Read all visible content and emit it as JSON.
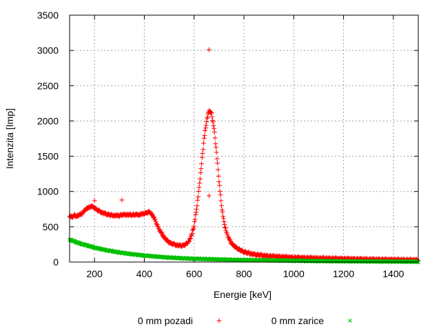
{
  "chart_data": {
    "type": "scatter",
    "title": "",
    "xlabel": "Energie [keV]",
    "ylabel": "Intenzita [Imp]",
    "xlim": [
      100,
      1500
    ],
    "ylim": [
      0,
      3500
    ],
    "xticks": [
      200,
      400,
      600,
      800,
      1000,
      1200,
      1400
    ],
    "yticks": [
      0,
      500,
      1000,
      1500,
      2000,
      2500,
      3000,
      3500
    ],
    "grid": true,
    "legend_position": "bottom",
    "x_start": 100,
    "x_step": 10,
    "series": [
      {
        "name": "0 mm pozadi",
        "color": "#ff0000",
        "marker": "plus",
        "values": [
          650,
          640,
          660,
          650,
          670,
          690,
          730,
          760,
          780,
          790,
          770,
          740,
          720,
          700,
          690,
          680,
          670,
          660,
          660,
          660,
          660,
          670,
          670,
          670,
          670,
          670,
          670,
          670,
          670,
          680,
          690,
          700,
          710,
          680,
          620,
          540,
          460,
          400,
          350,
          310,
          280,
          260,
          250,
          240,
          235,
          235,
          240,
          260,
          300,
          380,
          520,
          750,
          1050,
          1400,
          1750,
          2000,
          2150,
          2100,
          1900,
          1550,
          1150,
          800,
          560,
          420,
          330,
          270,
          230,
          200,
          180,
          160,
          145,
          135,
          125,
          115,
          110,
          105,
          100,
          95,
          90,
          88,
          85,
          82,
          80,
          78,
          76,
          74,
          72,
          70,
          68,
          66,
          64,
          63,
          62,
          61,
          60,
          59,
          58,
          57,
          56,
          55,
          54,
          53,
          52,
          51,
          50,
          50,
          49,
          48,
          47,
          46,
          46,
          45,
          44,
          43,
          43,
          42,
          41,
          40,
          40,
          39,
          38,
          38,
          37,
          36,
          36,
          35,
          35,
          34,
          34,
          33,
          33,
          32,
          32,
          31,
          31,
          30,
          30,
          29,
          29,
          28,
          28
        ],
        "outliers": [
          {
            "x": 660,
            "y": 3010
          },
          {
            "x": 660,
            "y": 940
          },
          {
            "x": 310,
            "y": 880
          },
          {
            "x": 200,
            "y": 870
          }
        ]
      },
      {
        "name": "0 mm zarice",
        "color": "#00c000",
        "marker": "cross",
        "values": [
          320,
          305,
          290,
          278,
          266,
          255,
          245,
          235,
          225,
          215,
          205,
          197,
          189,
          181,
          174,
          167,
          160,
          154,
          148,
          142,
          136,
          131,
          126,
          121,
          116,
          112,
          108,
          104,
          100,
          96,
          92,
          89,
          86,
          83,
          80,
          77,
          74,
          71,
          68,
          66,
          64,
          62,
          60,
          58,
          56,
          54,
          52,
          50,
          49,
          48,
          47,
          46,
          45,
          44,
          43,
          42,
          41,
          40,
          39,
          38,
          37,
          36,
          35,
          34,
          33,
          32,
          31,
          30,
          30,
          29,
          29,
          28,
          28,
          27,
          27,
          26,
          26,
          25,
          25,
          24,
          24,
          23,
          23,
          22,
          22,
          21,
          21,
          20,
          20,
          19,
          19,
          18,
          18,
          17,
          17,
          16,
          16,
          15,
          15,
          14,
          14,
          14,
          13,
          13,
          13,
          12,
          12,
          12,
          11,
          11,
          11,
          11,
          10,
          10,
          10,
          10,
          9,
          9,
          9,
          9,
          9,
          8,
          8,
          8,
          8,
          8,
          7,
          7,
          7,
          7,
          7,
          6,
          6,
          6,
          6,
          6,
          5,
          5,
          5,
          5,
          5
        ]
      }
    ]
  }
}
